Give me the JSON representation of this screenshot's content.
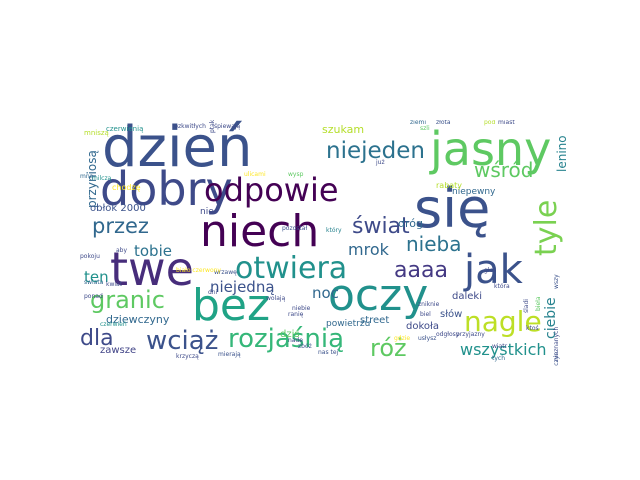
{
  "words": [
    {
      "text": "dzień",
      "color": "#3b528b"
    },
    {
      "text": "jasny",
      "color": "#5ec962"
    },
    {
      "text": "się",
      "color": "#3b528b"
    },
    {
      "text": "dobry",
      "color": "#3e4a89"
    },
    {
      "text": "niech",
      "color": "#440154"
    },
    {
      "text": "oczy",
      "color": "#21918c"
    },
    {
      "text": "bez",
      "color": "#20a386"
    },
    {
      "text": "twe",
      "color": "#472d7b"
    },
    {
      "text": "odpowie",
      "color": "#440154"
    },
    {
      "text": "otwiera",
      "color": "#21918c"
    },
    {
      "text": "niejeden",
      "color": "#2c728e"
    },
    {
      "text": "tyle",
      "color": "#7ad151"
    },
    {
      "text": "jak",
      "color": "#3b528b"
    },
    {
      "text": "nagle",
      "color": "#bddf26"
    },
    {
      "text": "rozjaśnią",
      "color": "#35b779"
    },
    {
      "text": "wciąż",
      "color": "#3b528b"
    },
    {
      "text": "dla",
      "color": "#3e4a89"
    },
    {
      "text": "granic",
      "color": "#5ec962"
    },
    {
      "text": "przez",
      "color": "#31688e"
    },
    {
      "text": "świat",
      "color": "#3e4a89"
    },
    {
      "text": "wśród",
      "color": "#5ec962"
    },
    {
      "text": "aaaa",
      "color": "#443983"
    },
    {
      "text": "nieba",
      "color": "#2c728e"
    },
    {
      "text": "róż",
      "color": "#5ec962"
    },
    {
      "text": "mrok",
      "color": "#31688e"
    },
    {
      "text": "tobie",
      "color": "#2c728e"
    },
    {
      "text": "ciebie",
      "color": "#26828e"
    },
    {
      "text": "noc",
      "color": "#31688e"
    },
    {
      "text": "niejedną",
      "color": "#3b528b"
    },
    {
      "text": "ten",
      "color": "#21918c"
    },
    {
      "text": "wszystkich",
      "color": "#21918c"
    },
    {
      "text": "szukam",
      "color": "#b5de2b"
    },
    {
      "text": "dróg",
      "color": "#31688e"
    },
    {
      "text": "dziewczyny",
      "color": "#31688e"
    },
    {
      "text": "daleki",
      "color": "#3e4a89"
    },
    {
      "text": "zawsze",
      "color": "#414487"
    },
    {
      "text": "przyniosą",
      "color": "#31688e"
    },
    {
      "text": "lenino",
      "color": "#26828e"
    },
    {
      "text": "niepewny",
      "color": "#31688e"
    },
    {
      "text": "powietrzu",
      "color": "#31688e"
    },
    {
      "text": "street",
      "color": "#31688e"
    },
    {
      "text": "dokoła",
      "color": "#3e4a89"
    },
    {
      "text": "słów",
      "color": "#3b528b"
    },
    {
      "text": "obłok 2000",
      "color": "#3b528b"
    },
    {
      "text": "dziś",
      "color": "#5ec962"
    },
    {
      "text": "nie",
      "color": "#3e4a89"
    },
    {
      "text": "rabaty",
      "color": "#b5de2b"
    },
    {
      "text": "chodzę",
      "color": "#fde725"
    },
    {
      "text": "mniszą",
      "color": "#b5de2b"
    },
    {
      "text": "czerwienią",
      "color": "#21918c"
    },
    {
      "text": "rozkwitłych",
      "color": "#3e4a89"
    },
    {
      "text": "śpiewają",
      "color": "#3e4a89"
    },
    {
      "text": "ziemi",
      "color": "#31688e"
    },
    {
      "text": "złota",
      "color": "#3b528b"
    },
    {
      "text": "pod",
      "color": "#b5de2b"
    },
    {
      "text": "miast",
      "color": "#3e4a89"
    },
    {
      "text": "ptaków",
      "color": "#3e4a89"
    },
    {
      "text": "ulicami",
      "color": "#fde725"
    },
    {
      "text": "wysp",
      "color": "#5ec962"
    },
    {
      "text": "już",
      "color": "#3e4a89"
    },
    {
      "text": "szli",
      "color": "#5ec962"
    },
    {
      "text": "mną",
      "color": "#31688e"
    },
    {
      "text": "milczą",
      "color": "#21918c"
    },
    {
      "text": "pozostał",
      "color": "#3b528b"
    },
    {
      "text": "który",
      "color": "#26828e"
    },
    {
      "text": "aby",
      "color": "#3e4a89"
    },
    {
      "text": "pokoju",
      "color": "#3e4a89"
    },
    {
      "text": "świata",
      "color": "#31688e"
    },
    {
      "text": "ponad",
      "color": "#3e4a89"
    },
    {
      "text": "kwiat",
      "color": "#3e4a89"
    },
    {
      "text": "czerwień",
      "color": "#21918c"
    },
    {
      "text": "krzyczą",
      "color": "#3e4a89"
    },
    {
      "text": "mierają",
      "color": "#3b528b"
    },
    {
      "text": "nas tej",
      "color": "#3b528b"
    },
    {
      "text": "zbóż",
      "color": "#3b528b"
    },
    {
      "text": "nade",
      "color": "#3e4a89"
    },
    {
      "text": "wrzawę",
      "color": "#3b528b"
    },
    {
      "text": "dni",
      "color": "#3e4a89"
    },
    {
      "text": "biało czerwony",
      "color": "#fde725"
    },
    {
      "text": "wolają",
      "color": "#3e4a89"
    },
    {
      "text": "ranię",
      "color": "#3e4a89"
    },
    {
      "text": "niebie",
      "color": "#3e4a89"
    },
    {
      "text": "gdzie",
      "color": "#fde725"
    },
    {
      "text": "usłysz",
      "color": "#3b528b"
    },
    {
      "text": "zniknie",
      "color": "#3e4a89"
    },
    {
      "text": "biel",
      "color": "#3e4a89"
    },
    {
      "text": "odgłosy",
      "color": "#3e4a89"
    },
    {
      "text": "przyjazny",
      "color": "#3e4a89"
    },
    {
      "text": "tych",
      "color": "#31688e"
    },
    {
      "text": "wiatr",
      "color": "#3e4a89"
    },
    {
      "text": "głoś",
      "color": "#3e4a89"
    },
    {
      "text": "która",
      "color": "#3e4a89"
    },
    {
      "text": "śladi",
      "color": "#3e4a89"
    },
    {
      "text": "ktoś",
      "color": "#3e4a89"
    },
    {
      "text": "bieła",
      "color": "#5ec962"
    },
    {
      "text": "nieznanych",
      "color": "#3e4a89"
    },
    {
      "text": "dziewczyn",
      "color": "#3b528b"
    },
    {
      "text": "wszy",
      "color": "#3b528b"
    }
  ]
}
